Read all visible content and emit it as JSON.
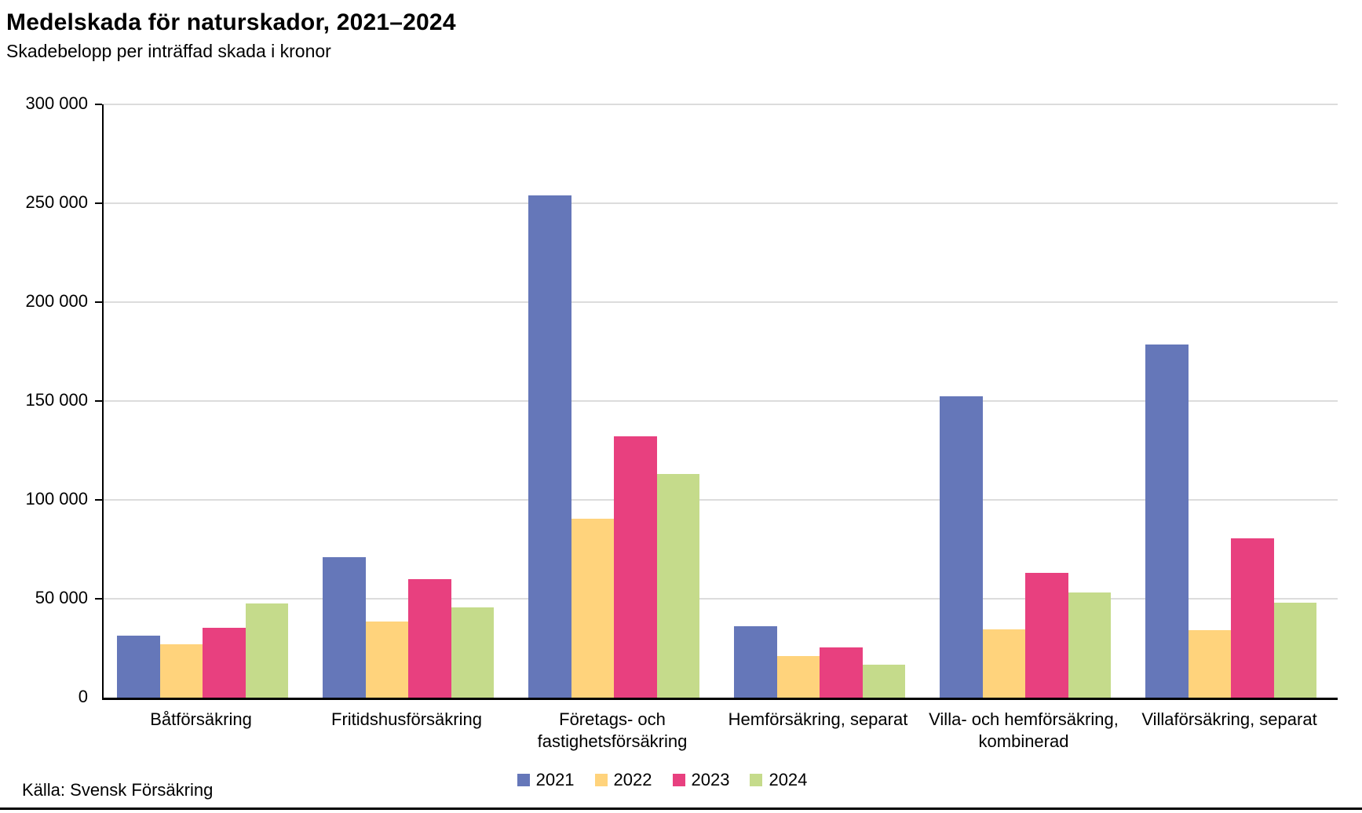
{
  "title": "Medelskada för naturskador, 2021–2024",
  "subtitle": "Skadebelopp per inträffad skada i kronor",
  "source": "Källa: Svensk Försäkring",
  "colors": {
    "grid": "#dcdcdc",
    "axis": "#000000",
    "series_2021": "#6577B9",
    "series_2022": "#FFD37C",
    "series_2023": "#E8407F",
    "series_2024": "#C5DB8B"
  },
  "chart_data": {
    "type": "bar",
    "title": "Medelskada för naturskador, 2021–2024",
    "subtitle": "Skadebelopp per inträffad skada i kronor",
    "xlabel": "",
    "ylabel": "",
    "categories": [
      "Båtförsäkring",
      "Fritidshusförsäkring",
      "Företags- och fastighetsförsäkring",
      "Hemförsäkring, separat",
      "Villa- och hemförsäkring, kombinerad",
      "Villaförsäkring, separat"
    ],
    "series": [
      {
        "name": "2021",
        "color": "#6577B9",
        "values": [
          31500,
          71000,
          254000,
          36000,
          152500,
          178500
        ]
      },
      {
        "name": "2022",
        "color": "#FFD37C",
        "values": [
          27000,
          38500,
          90500,
          21000,
          34500,
          34000
        ]
      },
      {
        "name": "2023",
        "color": "#E8407F",
        "values": [
          35500,
          60000,
          132000,
          25500,
          63000,
          80500
        ]
      },
      {
        "name": "2024",
        "color": "#C5DB8B",
        "values": [
          47500,
          45500,
          113000,
          16500,
          53000,
          48000
        ]
      }
    ],
    "ylim": [
      0,
      300000
    ],
    "ytick_step": 50000,
    "ytick_labels": [
      "0",
      "50 000",
      "100 000",
      "150 000",
      "200 000",
      "250 000",
      "300 000"
    ],
    "grid": true,
    "legend_position": "bottom"
  }
}
